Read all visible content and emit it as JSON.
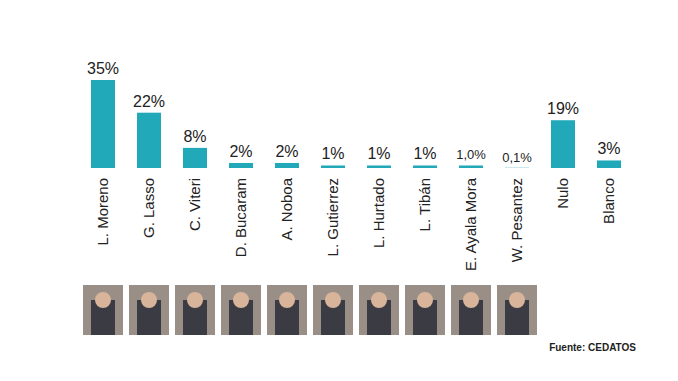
{
  "chart_data": {
    "type": "bar",
    "categories": [
      "L. Moreno",
      "G. Lasso",
      "C. Viteri",
      "D. Bucaram",
      "A. Noboa",
      "L. Gutierrez",
      "L. Hurtado",
      "L. Tibán",
      "E. Ayala Mora",
      "W. Pesantez",
      "Nulo",
      "Blanco"
    ],
    "values": [
      35,
      22,
      8,
      2,
      2,
      1,
      1,
      1,
      1.0,
      0.1,
      19,
      3
    ],
    "value_labels": [
      "35%",
      "22%",
      "8%",
      "2%",
      "2%",
      "1%",
      "1%",
      "1%",
      "1,0%",
      "0,1%",
      "19%",
      "3%"
    ],
    "color": "#22a9b9",
    "ylim": [
      0,
      35
    ],
    "data_labels": true,
    "tick_labels": "x",
    "annotations": [
      "Fuente: CEDATOS"
    ]
  }
}
